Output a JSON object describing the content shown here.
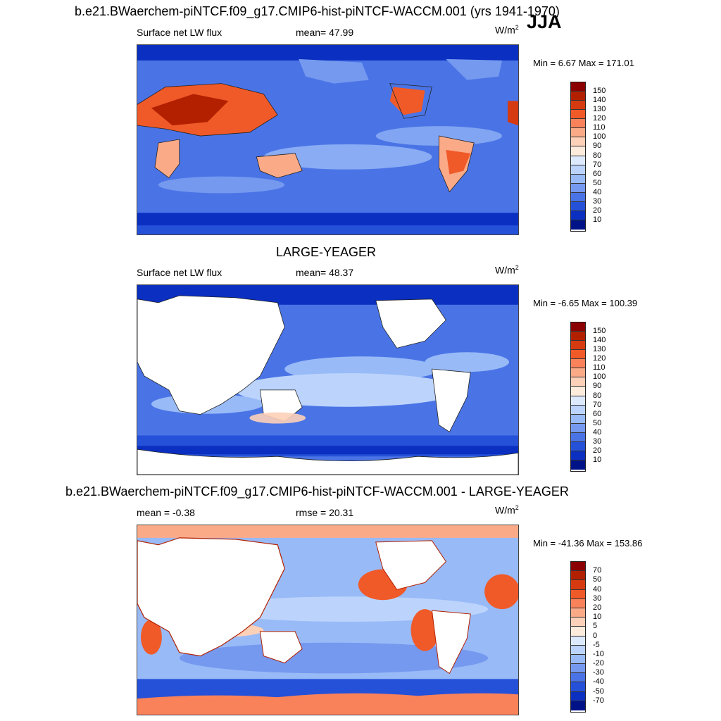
{
  "title": "b.e21.BWaerchem-piNTCF.f09_g17.CMIP6-hist-piNTCF-WACCM.001 (yrs 1941-1970)",
  "season": "JJA",
  "panels": [
    {
      "variable": "Surface net LW flux",
      "stat": "mean=  47.99",
      "units": "W/m",
      "units_sup": "2",
      "minmax": "Min =   6.67 Max = 171.01",
      "ticks": [
        "150",
        "140",
        "130",
        "120",
        "110",
        "100",
        "90",
        "80",
        "70",
        "60",
        "50",
        "40",
        "30",
        "20",
        "10"
      ]
    },
    {
      "heading": "LARGE-YEAGER",
      "variable": "Surface net LW flux",
      "stat": "mean=  48.37",
      "units": "W/m",
      "units_sup": "2",
      "minmax": "Min =  -6.65 Max = 100.39",
      "ticks": [
        "150",
        "140",
        "130",
        "120",
        "110",
        "100",
        "90",
        "80",
        "70",
        "60",
        "50",
        "40",
        "30",
        "20",
        "10"
      ]
    },
    {
      "heading": "b.e21.BWaerchem-piNTCF.f09_g17.CMIP6-hist-piNTCF-WACCM.001 - LARGE-YEAGER",
      "stat_left": "mean =  -0.38",
      "stat": "rmse =  20.31",
      "units": "W/m",
      "units_sup": "2",
      "minmax": "Min = -41.36 Max = 153.86",
      "ticks": [
        "70",
        "50",
        "40",
        "30",
        "20",
        "10",
        "5",
        "0",
        "-5",
        "-10",
        "-20",
        "-30",
        "-40",
        "-50",
        "-70"
      ]
    }
  ],
  "colors": {
    "abs_scale": [
      "#8b0000",
      "#b22000",
      "#d63a10",
      "#f05a28",
      "#f9825a",
      "#fbaa88",
      "#fdd0b8",
      "#fdebdb",
      "#ddeafe",
      "#bcd4fc",
      "#98baf7",
      "#7599ef",
      "#4a74e6",
      "#2550d8",
      "#0b2fc0",
      "#001288"
    ],
    "diff_scale": [
      "#8b0000",
      "#b22000",
      "#d63a10",
      "#f05a28",
      "#f9825a",
      "#fbaa88",
      "#fdd0b8",
      "#fdebdb",
      "#ddeafe",
      "#bcd4fc",
      "#98baf7",
      "#7599ef",
      "#4a74e6",
      "#2550d8",
      "#0b2fc0",
      "#001288"
    ]
  }
}
